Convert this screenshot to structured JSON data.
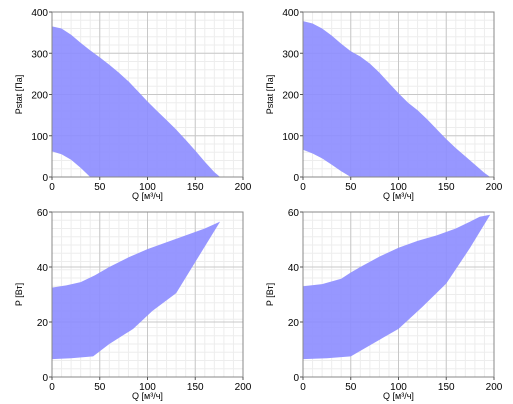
{
  "chart_data": [
    {
      "type": "area",
      "xlabel": "Q [м³/ч]",
      "ylabel": "Pstat [Па]",
      "xlim": [
        0,
        200
      ],
      "ylim": [
        0,
        400
      ],
      "xticks": [
        0,
        50,
        100,
        150,
        200
      ],
      "yticks": [
        0,
        100,
        200,
        300,
        400
      ],
      "grid": true,
      "color": "#8c8cff",
      "upper": {
        "x": [
          0,
          10,
          20,
          30,
          40,
          50,
          60,
          70,
          80,
          90,
          100,
          110,
          120,
          130,
          140,
          150,
          160,
          170,
          176
        ],
        "y": [
          365,
          360,
          345,
          325,
          307,
          290,
          272,
          253,
          232,
          208,
          183,
          160,
          138,
          115,
          90,
          64,
          37,
          12,
          0
        ]
      },
      "lower": {
        "x": [
          0,
          10,
          20,
          30,
          40
        ],
        "y": [
          62,
          55,
          42,
          22,
          0
        ]
      }
    },
    {
      "type": "area",
      "xlabel": "Q [м³/ч]",
      "ylabel": "Pstat [Па]",
      "xlim": [
        0,
        200
      ],
      "ylim": [
        0,
        400
      ],
      "xticks": [
        0,
        50,
        100,
        150,
        200
      ],
      "yticks": [
        0,
        100,
        200,
        300,
        400
      ],
      "grid": true,
      "color": "#8c8cff",
      "upper": {
        "x": [
          0,
          10,
          20,
          30,
          40,
          50,
          60,
          70,
          80,
          90,
          100,
          110,
          120,
          130,
          140,
          150,
          160,
          170,
          180,
          190,
          196
        ],
        "y": [
          378,
          372,
          360,
          343,
          323,
          305,
          292,
          275,
          253,
          228,
          203,
          180,
          162,
          140,
          116,
          92,
          70,
          50,
          30,
          10,
          0
        ]
      },
      "lower": {
        "x": [
          0,
          10,
          20,
          30,
          40,
          50
        ],
        "y": [
          66,
          57,
          45,
          30,
          14,
          0
        ]
      }
    },
    {
      "type": "area",
      "xlabel": "Q [м³/ч]",
      "ylabel": "P [Вт]",
      "xlim": [
        0,
        200
      ],
      "ylim": [
        0,
        60
      ],
      "xticks": [
        0,
        50,
        100,
        150,
        200
      ],
      "yticks": [
        0,
        20,
        40,
        60
      ],
      "grid": true,
      "color": "#8c8cff",
      "upper": {
        "x": [
          0,
          15,
          30,
          45,
          60,
          80,
          100,
          120,
          140,
          160,
          176
        ],
        "y": [
          32.5,
          33.3,
          34.5,
          37,
          40,
          43.5,
          46.5,
          49,
          51.5,
          54,
          56.5
        ]
      },
      "lower": {
        "x": [
          0,
          20,
          43,
          60,
          85,
          105,
          130,
          176
        ],
        "y": [
          6.5,
          6.8,
          7.5,
          12,
          17.5,
          24,
          30.5,
          56.5
        ]
      }
    },
    {
      "type": "area",
      "xlabel": "Q [м³/ч]",
      "ylabel": "P [Вт]",
      "xlim": [
        0,
        200
      ],
      "ylim": [
        0,
        60
      ],
      "xticks": [
        0,
        50,
        100,
        150,
        200
      ],
      "yticks": [
        0,
        20,
        40,
        60
      ],
      "grid": true,
      "color": "#8c8cff",
      "upper": {
        "x": [
          0,
          20,
          40,
          50,
          60,
          80,
          100,
          120,
          140,
          160,
          175,
          185,
          196
        ],
        "y": [
          33,
          33.8,
          35.7,
          38,
          40,
          43.8,
          47,
          49.5,
          51.5,
          54,
          56.5,
          58.3,
          59
        ]
      },
      "lower": {
        "x": [
          0,
          25,
          50,
          75,
          100,
          125,
          150,
          175,
          196
        ],
        "y": [
          6.5,
          6.8,
          7.5,
          12.5,
          17.5,
          25.5,
          34,
          47,
          59
        ]
      }
    }
  ]
}
